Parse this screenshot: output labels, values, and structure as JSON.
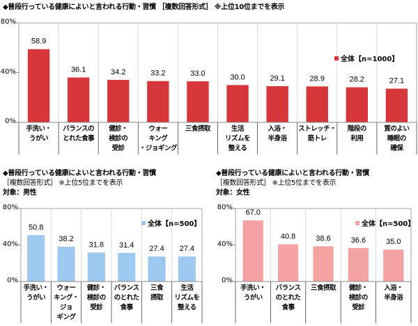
{
  "chart_data": [
    {
      "type": "bar",
      "title": "◆普段行っている健康によいと言われる行動・習慣 ［複数回答形式］ ※上位10位までを表示",
      "subtitle": "",
      "categories": [
        "手洗い・\nうがい",
        "バランスの\nとれた食事",
        "健診・\n検診の\n受診",
        "ウォー\nキング\n・ジョギング",
        "三食摂取",
        "生活\nリズムを\n整える",
        "入浴・\n半身浴",
        "ストレッチ・\n筋トレ",
        "階段の\n利用",
        "質のよい\n睡眠の\n確保"
      ],
      "series": [
        {
          "name": "全体【n=1000】",
          "values": [
            58.9,
            36.1,
            34.2,
            33.2,
            33.0,
            30.0,
            29.1,
            28.9,
            28.2,
            27.1
          ],
          "color": "#d7373a"
        }
      ],
      "yticks": [
        "0%",
        "40%",
        "80%"
      ],
      "ylim": [
        0,
        80
      ],
      "legend": "top-right",
      "grid": false
    },
    {
      "type": "bar",
      "title": "◆普段行っている健康によいと言われる行動・習慣",
      "subtitle": "［複数回答形式］ ※上位5位までを表示",
      "target": "対象：男性",
      "categories": [
        "手洗い・\nうがい",
        "ウォー\nキング・\nジョ\nギング",
        "健診・\n検診の\n受診",
        "バランス\nのとれた\n食事",
        "三食\n摂取",
        "生活\nリズムを\n整える"
      ],
      "series": [
        {
          "name": "全体【n=500】",
          "values": [
            50.8,
            38.2,
            31.8,
            31.4,
            27.4,
            27.4
          ],
          "color": "#9dc9f1"
        }
      ],
      "yticks": [
        "0%",
        "40%",
        "80%"
      ],
      "ylim": [
        0,
        80
      ],
      "legend": "top-right",
      "grid": false
    },
    {
      "type": "bar",
      "title": "◆普段行っている健康によいと言われる行動・習慣",
      "subtitle": "［複数回答形式］ ※上位5位までを表示",
      "target": "対象：女性",
      "categories": [
        "手洗い・\nうがい",
        "バランス\nのとれた\n食事",
        "三食摂取",
        "健診・\n検診の\n受診",
        "入浴・\n半身浴"
      ],
      "series": [
        {
          "name": "全体【n=500】",
          "values": [
            67.0,
            40.8,
            38.6,
            36.6,
            35.0
          ],
          "color": "#f4a2a2"
        }
      ],
      "yticks": [
        "0%",
        "40%",
        "80%"
      ],
      "ylim": [
        0,
        80
      ],
      "legend": "top-right",
      "grid": false
    }
  ]
}
